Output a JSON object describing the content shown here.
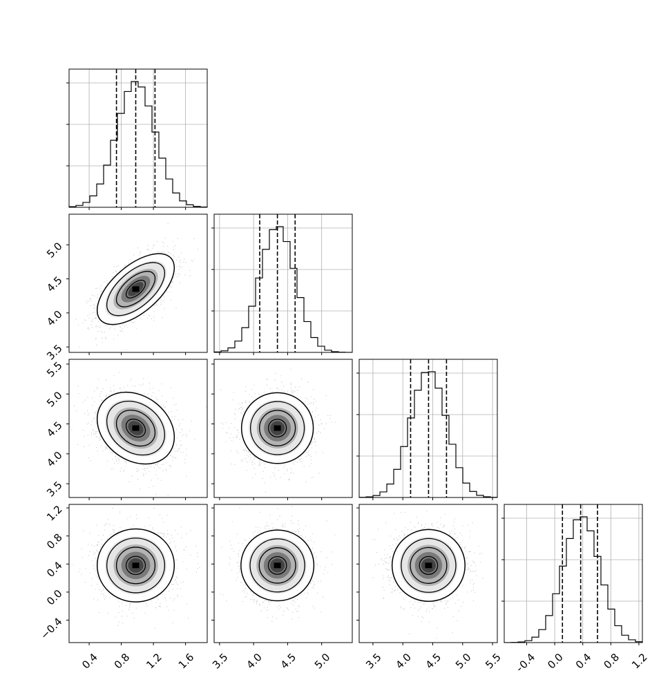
{
  "chart_data": {
    "type": "corner",
    "n_params": 4,
    "param_ranges": [
      [
        0.15,
        1.87
      ],
      [
        3.42,
        5.45
      ],
      [
        3.27,
        5.58
      ],
      [
        -0.72,
        1.25
      ]
    ],
    "ticks": [
      [
        "0.4",
        "0.8",
        "1.2",
        "1.6"
      ],
      [
        "3.5",
        "4.0",
        "4.5",
        "5.0"
      ],
      [
        "3.5",
        "4.0",
        "4.5",
        "5.0",
        "5.5"
      ],
      [
        "−0.4",
        "0.0",
        "0.4",
        "0.8",
        "1.2"
      ]
    ],
    "y_ticks": [
      null,
      [
        "3.5",
        "4.0",
        "4.5",
        "5.0"
      ],
      [
        "3.5",
        "4.0",
        "4.5",
        "5.0",
        "5.5"
      ],
      [
        "−0.4",
        "0.0",
        "0.4",
        "0.8",
        "1.2"
      ]
    ],
    "means": [
      0.98,
      4.35,
      4.43,
      0.38
    ],
    "stds": [
      0.24,
      0.26,
      0.3,
      0.26
    ],
    "quantiles": [
      [
        0.74,
        0.98,
        1.22
      ],
      [
        4.09,
        4.35,
        4.61
      ],
      [
        4.13,
        4.43,
        4.73
      ],
      [
        0.11,
        0.37,
        0.61
      ]
    ],
    "correlations": {
      "1-0": 0.6,
      "2-0": -0.25,
      "2-1": 0.0,
      "3-0": 0.0,
      "3-1": 0.0,
      "3-2": 0.0
    },
    "hist_bins": 20,
    "grid": true,
    "colors": {
      "line": "#000000",
      "grid": "#b0b0b0",
      "points": "#999999",
      "fill_dark": "#000000",
      "fill_light": "#ffffff"
    }
  }
}
